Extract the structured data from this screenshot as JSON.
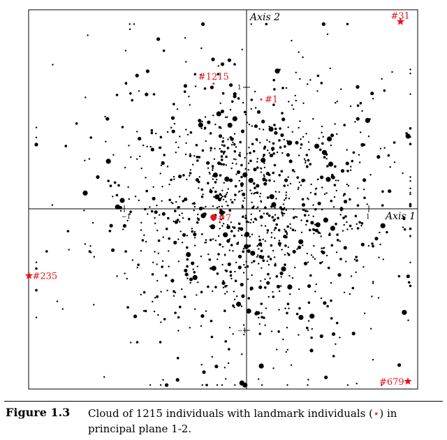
{
  "chart_data": {
    "type": "scatter",
    "x_axis": {
      "label": "Axis 1",
      "tick_labels": [
        "−1",
        "1"
      ],
      "tick_values": [
        -1,
        1
      ]
    },
    "y_axis": {
      "label": "Axis 2",
      "tick_labels": [
        "1",
        "−1"
      ],
      "tick_values": [
        1,
        -1
      ]
    },
    "xlim": [
      -1.8,
      1.4
    ],
    "ylim": [
      -1.5,
      1.6
    ],
    "grid": false,
    "point_color": "#000000",
    "landmark_color": "#e8141c",
    "landmarks": [
      {
        "label": "#31",
        "x": 1.26,
        "y": 1.54,
        "marker": "star"
      },
      {
        "label": "#1215",
        "x": -0.27,
        "y": 1.03,
        "marker": "dot-small"
      },
      {
        "label": "#1",
        "x": 0.12,
        "y": 0.9,
        "marker": "dot-small"
      },
      {
        "label": "#7",
        "x": -0.27,
        "y": -0.07,
        "marker": "dot-large"
      },
      {
        "label": "#235",
        "x": -1.78,
        "y": -0.55,
        "marker": "star"
      },
      {
        "label": "#679",
        "x": 1.32,
        "y": -1.42,
        "marker": "star"
      }
    ],
    "cloud": {
      "count": 1215,
      "sd_x": 0.62,
      "sd_y": 0.58
    }
  },
  "caption": {
    "label": "Figure 1.3",
    "text_before": "Cloud of 1215 individuals with landmark individuals (",
    "star": "⋆",
    "text_after": ") in principal plane 1-2."
  }
}
